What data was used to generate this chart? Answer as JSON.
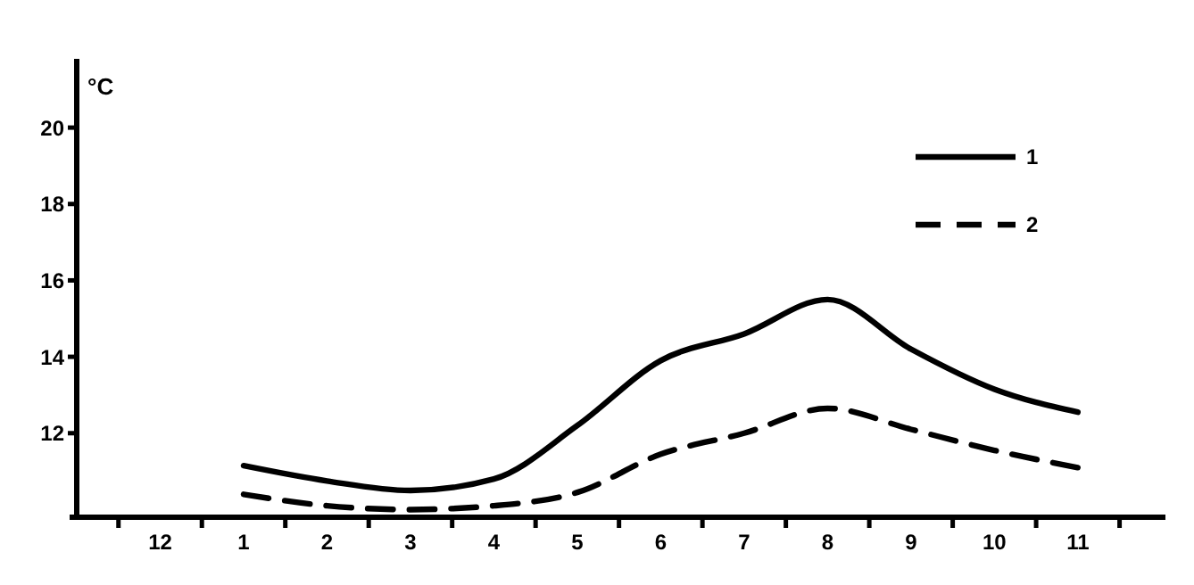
{
  "chart_data": {
    "type": "line",
    "ylabel": "°C",
    "categories": [
      "12",
      "1",
      "2",
      "3",
      "4",
      "5",
      "6",
      "7",
      "8",
      "9",
      "10",
      "11"
    ],
    "ylim": [
      9.8,
      21.8
    ],
    "yticks": [
      12,
      14,
      16,
      18,
      20
    ],
    "legend": "top right",
    "marker": "none",
    "series": [
      {
        "name": "1",
        "color": "#000000",
        "line_style": "solid",
        "values": [
          null,
          11.15,
          10.75,
          10.5,
          10.8,
          12.2,
          13.9,
          14.6,
          15.5,
          14.2,
          13.15,
          12.55
        ]
      },
      {
        "name": "2",
        "color": "#000000",
        "line_style": "dashed",
        "values": [
          null,
          10.4,
          10.1,
          10.0,
          10.1,
          10.45,
          11.45,
          12.0,
          12.65,
          12.1,
          11.55,
          11.1
        ]
      }
    ]
  }
}
